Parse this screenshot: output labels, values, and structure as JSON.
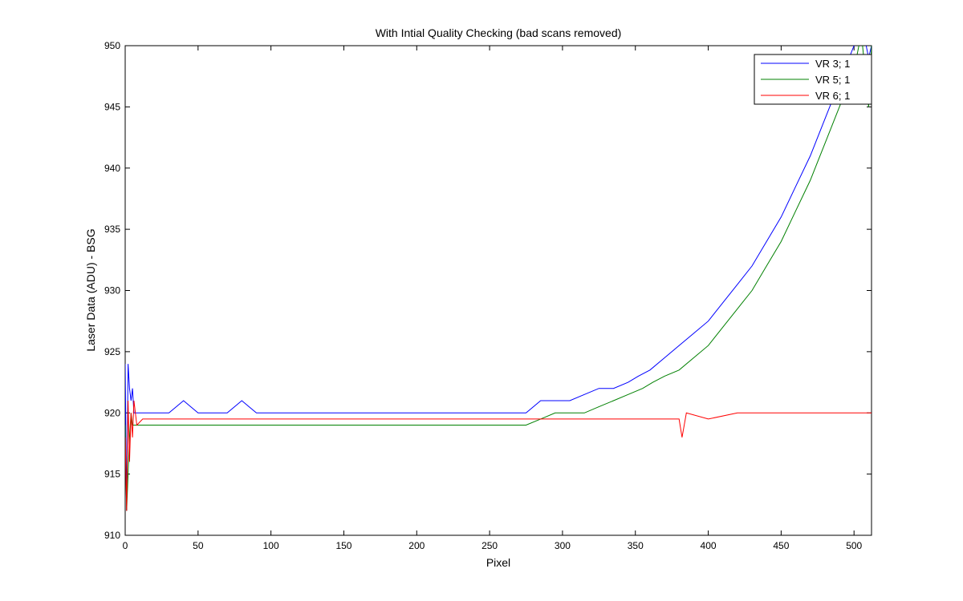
{
  "chart_data": {
    "type": "line",
    "title": "With Intial Quality Checking (bad scans removed)",
    "xlabel": "Pixel",
    "ylabel": "Laser Data (ADU) - BSG",
    "xlim": [
      0,
      512
    ],
    "ylim": [
      910,
      950
    ],
    "xticks": [
      0,
      50,
      100,
      150,
      200,
      250,
      300,
      350,
      400,
      450,
      500
    ],
    "yticks": [
      910,
      915,
      920,
      925,
      930,
      935,
      940,
      945,
      950
    ],
    "grid": false,
    "legend_position": "top-right",
    "series": [
      {
        "name": "VR  3; 1",
        "color": "#0000ff",
        "x": [
          0,
          1,
          2,
          3,
          4,
          5,
          6,
          8,
          12,
          20,
          30,
          40,
          50,
          60,
          70,
          80,
          90,
          100,
          120,
          140,
          160,
          180,
          200,
          220,
          240,
          260,
          275,
          285,
          295,
          305,
          315,
          325,
          335,
          345,
          352,
          360,
          370,
          380,
          390,
          400,
          410,
          420,
          430,
          440,
          450,
          460,
          470,
          480,
          490,
          500,
          505,
          510,
          512
        ],
        "y": [
          924,
          912,
          924,
          922,
          921,
          922,
          920,
          920,
          920,
          920,
          920,
          921,
          920,
          920,
          920,
          921,
          920,
          920,
          920,
          920,
          920,
          920,
          920,
          920,
          920,
          920,
          920,
          921,
          921,
          921,
          921.5,
          922,
          922,
          922.5,
          923,
          923.5,
          924.5,
          925.5,
          926.5,
          927.5,
          929,
          930.5,
          932,
          934,
          936,
          938.5,
          941,
          944,
          947,
          950,
          952,
          949,
          950
        ]
      },
      {
        "name": "VR  5; 1",
        "color": "#008000",
        "x": [
          0,
          1,
          2,
          3,
          4,
          5,
          6,
          8,
          12,
          20,
          30,
          40,
          50,
          60,
          70,
          80,
          90,
          100,
          120,
          140,
          160,
          180,
          200,
          220,
          240,
          260,
          275,
          285,
          295,
          305,
          315,
          325,
          335,
          345,
          355,
          362,
          370,
          380,
          390,
          400,
          410,
          420,
          430,
          440,
          450,
          460,
          470,
          480,
          490,
          500,
          505,
          510,
          512
        ],
        "y": [
          919,
          912,
          915,
          918,
          920,
          919,
          919,
          919,
          919,
          919,
          919,
          919,
          919,
          919,
          919,
          919,
          919,
          919,
          919,
          919,
          919,
          919,
          919,
          919,
          919,
          919,
          919,
          919.5,
          920,
          920,
          920,
          920.5,
          921,
          921.5,
          922,
          922.5,
          923,
          923.5,
          924.5,
          925.5,
          927,
          928.5,
          930,
          932,
          934,
          936.5,
          939,
          942,
          945,
          948,
          951,
          945,
          950
        ]
      },
      {
        "name": "VR  6; 1",
        "color": "#ff0000",
        "x": [
          0,
          1,
          2,
          3,
          4,
          5,
          6,
          8,
          12,
          20,
          30,
          40,
          50,
          60,
          70,
          80,
          90,
          100,
          120,
          140,
          160,
          180,
          200,
          220,
          240,
          260,
          280,
          300,
          320,
          340,
          360,
          380,
          382,
          385,
          400,
          420,
          440,
          460,
          480,
          500,
          512
        ],
        "y": [
          918,
          912,
          921,
          916,
          920,
          918,
          921,
          919,
          919.5,
          919.5,
          919.5,
          919.5,
          919.5,
          919.5,
          919.5,
          919.5,
          919.5,
          919.5,
          919.5,
          919.5,
          919.5,
          919.5,
          919.5,
          919.5,
          919.5,
          919.5,
          919.5,
          919.5,
          919.5,
          919.5,
          919.5,
          919.5,
          918,
          920,
          919.5,
          920,
          920,
          920,
          920,
          920,
          920
        ]
      }
    ]
  }
}
